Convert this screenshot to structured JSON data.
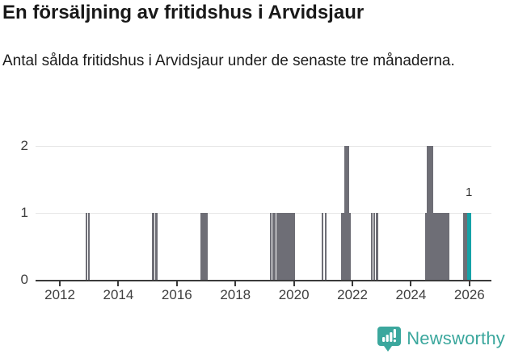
{
  "header": {
    "title": "En försäljning av fritidshus i Arvidsjaur",
    "subtitle": "Antal sålda fritidshus i Arvidsjaur under de senaste tre månaderna."
  },
  "colors": {
    "bar": "#6e6e76",
    "highlight": "#16a2a7",
    "axis": "#3a3a3a",
    "grid": "#e6e6e6",
    "tick_text": "#3f3f3f",
    "brand": "#3ba79d"
  },
  "chart_data": {
    "type": "bar",
    "title": "En försäljning av fritidshus i Arvidsjaur",
    "subtitle": "Antal sålda fritidshus i Arvidsjaur under de senaste tre månaderna.",
    "xlabel": "",
    "ylabel": "",
    "grid": "horizontal",
    "legend": "none",
    "x_axis": {
      "min": 2011.17,
      "max": 2026.75,
      "ticks": [
        2012,
        2014,
        2016,
        2018,
        2020,
        2022,
        2024,
        2026
      ]
    },
    "y_axis": {
      "min": 0,
      "max": 2,
      "ticks": [
        0,
        1,
        2
      ]
    },
    "annotation": {
      "text": "1",
      "x": 2025.98,
      "y": 1
    },
    "bars": [
      {
        "start": 2012.87,
        "end": 2012.93,
        "value": 1,
        "highlight": false
      },
      {
        "start": 2012.96,
        "end": 2013.03,
        "value": 1,
        "highlight": false
      },
      {
        "start": 2015.15,
        "end": 2015.23,
        "value": 1,
        "highlight": false
      },
      {
        "start": 2015.25,
        "end": 2015.33,
        "value": 1,
        "highlight": false
      },
      {
        "start": 2016.81,
        "end": 2017.06,
        "value": 1,
        "highlight": false
      },
      {
        "start": 2019.18,
        "end": 2019.22,
        "value": 1,
        "highlight": false
      },
      {
        "start": 2019.26,
        "end": 2019.3,
        "value": 1,
        "highlight": false
      },
      {
        "start": 2019.33,
        "end": 2019.38,
        "value": 1,
        "highlight": false
      },
      {
        "start": 2019.4,
        "end": 2020.04,
        "value": 1,
        "highlight": false
      },
      {
        "start": 2020.94,
        "end": 2021.01,
        "value": 1,
        "highlight": false
      },
      {
        "start": 2021.05,
        "end": 2021.11,
        "value": 1,
        "highlight": false
      },
      {
        "start": 2021.62,
        "end": 2021.72,
        "value": 1,
        "highlight": false
      },
      {
        "start": 2021.72,
        "end": 2021.8,
        "value": 2,
        "highlight": false
      },
      {
        "start": 2021.81,
        "end": 2021.88,
        "value": 2,
        "highlight": false
      },
      {
        "start": 2021.88,
        "end": 2021.95,
        "value": 1,
        "highlight": false
      },
      {
        "start": 2022.63,
        "end": 2022.69,
        "value": 1,
        "highlight": false
      },
      {
        "start": 2022.72,
        "end": 2022.77,
        "value": 1,
        "highlight": false
      },
      {
        "start": 2022.8,
        "end": 2022.87,
        "value": 1,
        "highlight": false
      },
      {
        "start": 2024.49,
        "end": 2025.32,
        "value": 1,
        "highlight": false
      },
      {
        "start": 2024.55,
        "end": 2024.76,
        "value": 2,
        "highlight": false
      },
      {
        "start": 2025.79,
        "end": 2025.92,
        "value": 1,
        "highlight": false
      },
      {
        "start": 2025.92,
        "end": 2026.05,
        "value": 1,
        "highlight": true
      }
    ]
  },
  "footer": {
    "brand": "Newsworthy",
    "logo_icon": "newsworthy-speech-bubble-chart-icon"
  }
}
